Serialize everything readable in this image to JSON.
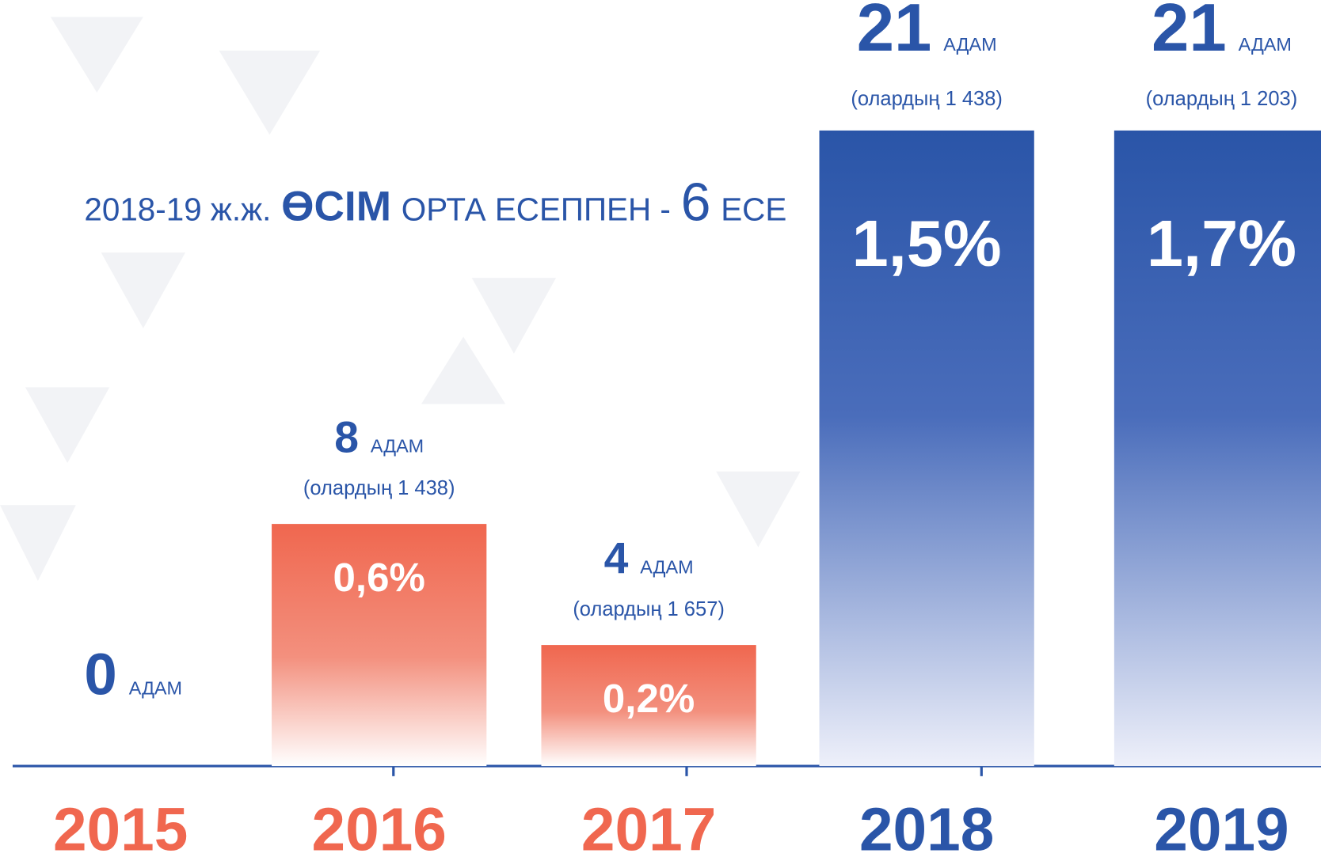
{
  "chart_data": {
    "type": "bar",
    "headline": [
      "2018-19 ж.ж.",
      "ӨСІМ",
      "ОРТА ЕСЕППЕН -",
      "6",
      "ЕСЕ"
    ],
    "categories": [
      "2015",
      "2016",
      "2017",
      "2018",
      "2019"
    ],
    "unit": "АДАМ",
    "values": [
      0,
      8,
      4,
      21,
      21
    ],
    "notes": [
      null,
      "(олардың 1 438)",
      "(олардың 1 657)",
      "(олардың 1 438)",
      "(олардың 1 203)"
    ],
    "percents": [
      null,
      0.6,
      0.2,
      1.5,
      1.7
    ],
    "percent_labels": [
      null,
      "0,6%",
      "0,2%",
      "1,5%",
      "1,7%"
    ],
    "colors": [
      "#f0674f",
      "#f0674f",
      "#f0674f",
      "#2a55a8",
      "#2a55a8"
    ]
  }
}
